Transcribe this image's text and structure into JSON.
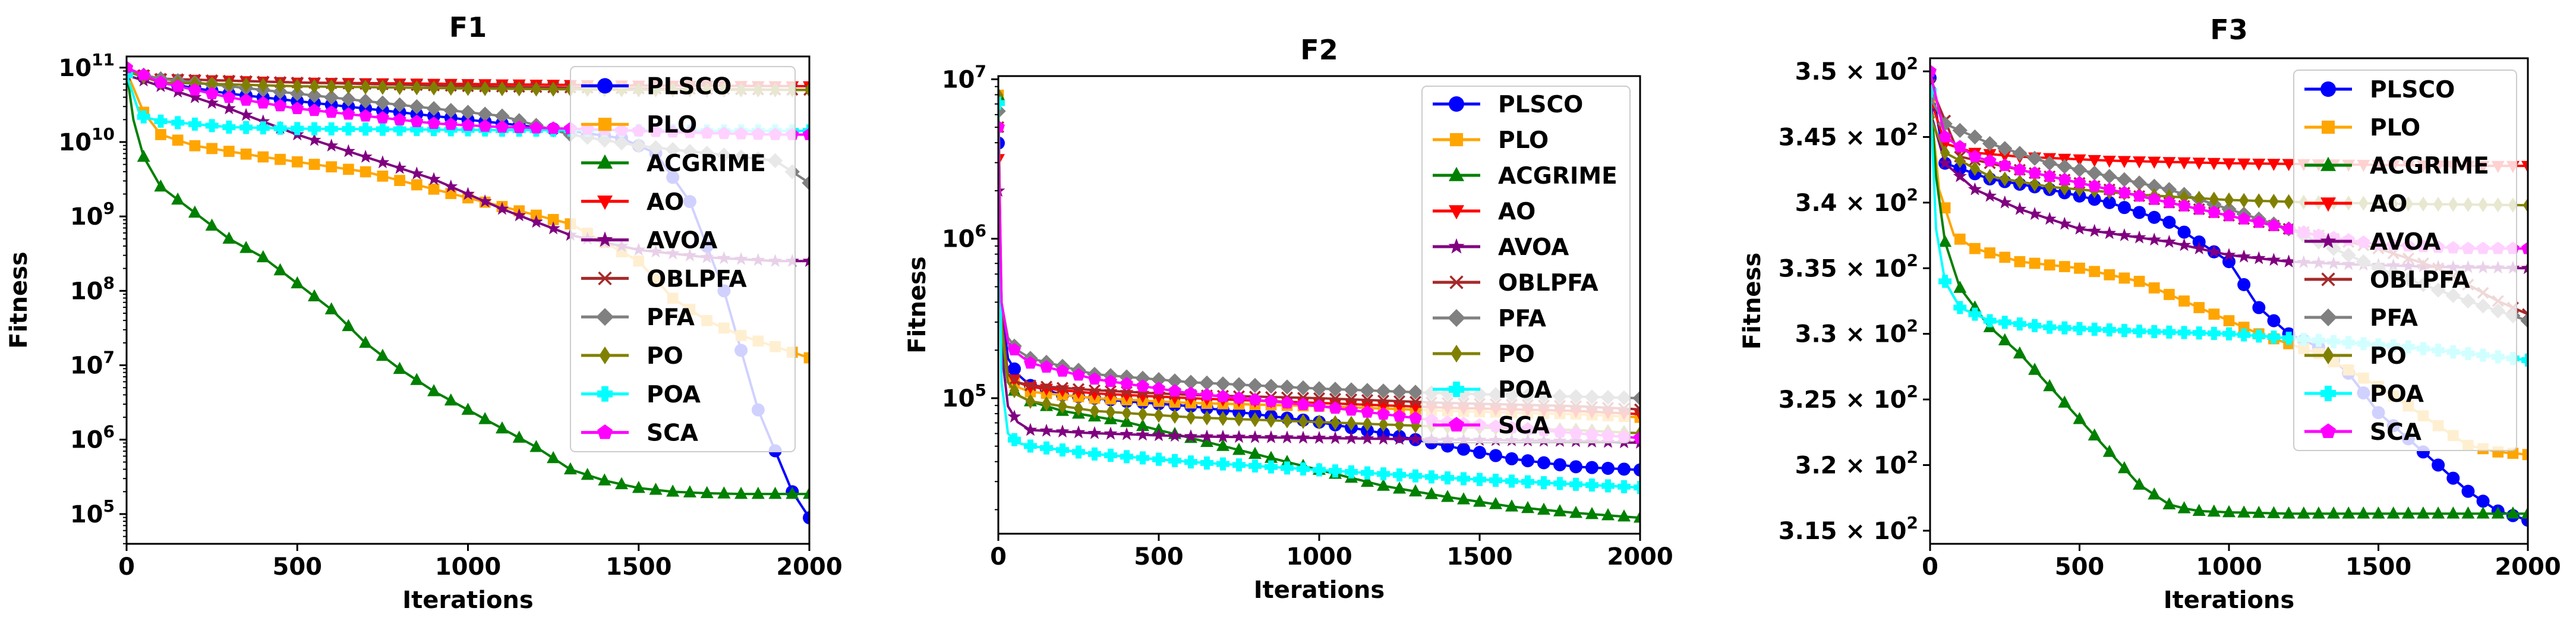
{
  "colors": {
    "PLSCO": "#0000ff",
    "PLO": "#ffa500",
    "ACGRIME": "#008000",
    "AO": "#ff0000",
    "AVOA": "#800080",
    "OBLPFA": "#a52a2a",
    "PFA": "#808080",
    "PO": "#808000",
    "POA": "#00ffff",
    "SCA": "#ff00ff"
  },
  "markers": {
    "PLSCO": "circle",
    "PLO": "square",
    "ACGRIME": "triangle-up",
    "AO": "triangle-down",
    "AVOA": "star",
    "OBLPFA": "x",
    "PFA": "diamond",
    "PO": "diamond-thin",
    "POA": "plus",
    "SCA": "pentagon"
  },
  "chart_data": [
    {
      "type": "line",
      "title": "F1",
      "xlabel": "Iterations",
      "ylabel": "Fitness",
      "yscale": "log",
      "xlim": [
        0,
        2000
      ],
      "ylim_log10": [
        4.6,
        11.15
      ],
      "xticks": [
        0,
        500,
        1000,
        1500,
        2000
      ],
      "xtick_labels": [
        "0",
        "500",
        "1000",
        "1500",
        "2000"
      ],
      "yticks_log10": [
        5,
        6,
        7,
        8,
        9,
        10,
        11
      ],
      "ytick_labels": [
        {
          "base": "10",
          "exp": "5"
        },
        {
          "base": "10",
          "exp": "6"
        },
        {
          "base": "10",
          "exp": "7"
        },
        {
          "base": "10",
          "exp": "8"
        },
        {
          "base": "10",
          "exp": "9"
        },
        {
          "base": "10",
          "exp": "10"
        },
        {
          "base": "10",
          "exp": "11"
        }
      ],
      "legend_location": "upper right",
      "series": [
        {
          "name": "PLSCO",
          "x": [
            0,
            100,
            300,
            500,
            700,
            900,
            1100,
            1300,
            1450,
            1550,
            1650,
            1750,
            1850,
            1950,
            2000
          ],
          "y_log10": [
            10.95,
            10.8,
            10.65,
            10.55,
            10.45,
            10.35,
            10.25,
            10.15,
            10.05,
            9.85,
            9.2,
            8.0,
            6.4,
            5.3,
            4.95
          ]
        },
        {
          "name": "PLO",
          "x": [
            0,
            50,
            100,
            200,
            400,
            700,
            1000,
            1300,
            1500,
            1600,
            1700,
            1800,
            1900,
            2000
          ],
          "y_log10": [
            10.95,
            10.4,
            10.1,
            9.95,
            9.8,
            9.6,
            9.25,
            8.9,
            8.4,
            7.9,
            7.6,
            7.4,
            7.25,
            7.1
          ]
        },
        {
          "name": "ACGRIME",
          "x": [
            0,
            20,
            50,
            100,
            200,
            300,
            400,
            500,
            600,
            700,
            800,
            900,
            1000,
            1100,
            1200,
            1300,
            1400,
            1500,
            1600,
            1700,
            1800,
            1900,
            2000
          ],
          "y_log10": [
            10.95,
            10.3,
            9.8,
            9.4,
            9.05,
            8.7,
            8.45,
            8.1,
            7.75,
            7.3,
            6.95,
            6.65,
            6.4,
            6.15,
            5.9,
            5.6,
            5.45,
            5.35,
            5.3,
            5.28,
            5.27,
            5.27,
            5.27
          ]
        },
        {
          "name": "AO",
          "x": [
            0,
            100,
            500,
            1000,
            1500,
            2000
          ],
          "y_log10": [
            10.95,
            10.85,
            10.8,
            10.78,
            10.76,
            10.75
          ]
        },
        {
          "name": "AVOA",
          "x": [
            0,
            100,
            300,
            500,
            700,
            900,
            1100,
            1300,
            1500,
            1700,
            1900,
            2000
          ],
          "y_log10": [
            10.9,
            10.75,
            10.45,
            10.1,
            9.8,
            9.5,
            9.1,
            8.75,
            8.55,
            8.45,
            8.4,
            8.4
          ]
        },
        {
          "name": "OBLPFA",
          "x": [
            0,
            100,
            500,
            1000,
            1500,
            2000
          ],
          "y_log10": [
            10.95,
            10.85,
            10.8,
            10.75,
            10.72,
            10.7
          ]
        },
        {
          "name": "PFA",
          "x": [
            0,
            100,
            300,
            500,
            700,
            900,
            1100,
            1300,
            1500,
            1700,
            1900,
            2000
          ],
          "y_log10": [
            10.95,
            10.85,
            10.75,
            10.65,
            10.55,
            10.45,
            10.35,
            10.1,
            9.95,
            9.85,
            9.75,
            9.45
          ]
        },
        {
          "name": "PO",
          "x": [
            0,
            100,
            500,
            1000,
            1500,
            2000
          ],
          "y_log10": [
            10.95,
            10.8,
            10.75,
            10.72,
            10.7,
            10.7
          ]
        },
        {
          "name": "POA",
          "x": [
            0,
            40,
            100,
            300,
            500,
            800,
            1100,
            1400,
            1700,
            2000
          ],
          "y_log10": [
            10.9,
            10.35,
            10.28,
            10.2,
            10.18,
            10.17,
            10.16,
            10.16,
            10.15,
            10.15
          ]
        },
        {
          "name": "SCA",
          "x": [
            0,
            100,
            300,
            500,
            700,
            900,
            1100,
            1300,
            1500,
            1700,
            1900,
            2000
          ],
          "y_log10": [
            11.0,
            10.8,
            10.6,
            10.45,
            10.35,
            10.25,
            10.2,
            10.18,
            10.15,
            10.12,
            10.1,
            10.1
          ]
        }
      ]
    },
    {
      "type": "line",
      "title": "F2",
      "xlabel": "Iterations",
      "ylabel": "Fitness",
      "yscale": "log",
      "xlim": [
        0,
        2000
      ],
      "ylim_log10": [
        4.15,
        7.02
      ],
      "xticks": [
        0,
        500,
        1000,
        1500,
        2000
      ],
      "xtick_labels": [
        "0",
        "500",
        "1000",
        "1500",
        "2000"
      ],
      "yticks_log10": [
        5,
        6,
        7
      ],
      "ytick_labels": [
        {
          "base": "10",
          "exp": "5"
        },
        {
          "base": "10",
          "exp": "6"
        },
        {
          "base": "10",
          "exp": "7"
        }
      ],
      "legend_location": "upper right",
      "series": [
        {
          "name": "PLSCO",
          "x": [
            0,
            10,
            30,
            60,
            100,
            200,
            400,
            600,
            800,
            1000,
            1200,
            1400,
            1600,
            1800,
            2000
          ],
          "y_log10": [
            6.6,
            5.6,
            5.25,
            5.15,
            5.08,
            5.02,
            4.98,
            4.95,
            4.9,
            4.85,
            4.78,
            4.7,
            4.62,
            4.57,
            4.55
          ]
        },
        {
          "name": "PLO",
          "x": [
            0,
            10,
            30,
            60,
            100,
            300,
            600,
            1000,
            1400,
            1800,
            2000
          ],
          "y_log10": [
            6.9,
            5.5,
            5.15,
            5.07,
            5.04,
            5.0,
            4.97,
            4.95,
            4.92,
            4.9,
            4.88
          ]
        },
        {
          "name": "ACGRIME",
          "x": [
            0,
            10,
            30,
            60,
            100,
            200,
            400,
            600,
            800,
            1000,
            1200,
            1400,
            1600,
            1800,
            2000
          ],
          "y_log10": [
            6.9,
            5.4,
            5.1,
            5.02,
            4.98,
            4.92,
            4.85,
            4.75,
            4.65,
            4.55,
            4.45,
            4.38,
            4.32,
            4.28,
            4.25
          ]
        },
        {
          "name": "AO",
          "x": [
            0,
            10,
            30,
            60,
            100,
            300,
            600,
            1000,
            1400,
            1800,
            2000
          ],
          "y_log10": [
            6.5,
            5.5,
            5.15,
            5.1,
            5.07,
            5.03,
            5.0,
            4.97,
            4.94,
            4.92,
            4.9
          ]
        },
        {
          "name": "AVOA",
          "x": [
            0,
            10,
            30,
            60,
            100,
            300,
            600,
            1000,
            1400,
            1800,
            2000
          ],
          "y_log10": [
            6.3,
            5.3,
            4.95,
            4.85,
            4.8,
            4.78,
            4.76,
            4.75,
            4.74,
            4.73,
            4.72
          ]
        },
        {
          "name": "OBLPFA",
          "x": [
            0,
            10,
            30,
            60,
            100,
            300,
            600,
            1000,
            1400,
            1800,
            2000
          ],
          "y_log10": [
            6.7,
            5.5,
            5.15,
            5.1,
            5.08,
            5.05,
            5.02,
            5.0,
            4.97,
            4.95,
            4.93
          ]
        },
        {
          "name": "PFA",
          "x": [
            0,
            10,
            30,
            60,
            100,
            300,
            600,
            1000,
            1400,
            1800,
            2000
          ],
          "y_log10": [
            6.8,
            5.6,
            5.38,
            5.3,
            5.25,
            5.15,
            5.1,
            5.06,
            5.03,
            5.01,
            5.0
          ]
        },
        {
          "name": "PO",
          "x": [
            0,
            10,
            30,
            60,
            100,
            300,
            600,
            1000,
            1400,
            1800,
            2000
          ],
          "y_log10": [
            6.9,
            5.45,
            5.1,
            5.02,
            4.98,
            4.92,
            4.88,
            4.85,
            4.82,
            4.8,
            4.78
          ]
        },
        {
          "name": "POA",
          "x": [
            0,
            10,
            30,
            60,
            100,
            300,
            600,
            1000,
            1400,
            1800,
            2000
          ],
          "y_log10": [
            6.85,
            5.1,
            4.78,
            4.72,
            4.7,
            4.65,
            4.6,
            4.55,
            4.5,
            4.46,
            4.44
          ]
        },
        {
          "name": "SCA",
          "x": [
            0,
            10,
            30,
            60,
            100,
            300,
            600,
            1000,
            1400,
            1800,
            2000
          ],
          "y_log10": [
            6.7,
            5.6,
            5.35,
            5.28,
            5.22,
            5.12,
            5.03,
            4.95,
            4.85,
            4.78,
            4.75
          ]
        }
      ]
    },
    {
      "type": "line",
      "title": "F3",
      "xlabel": "Iterations",
      "ylabel": "Fitness",
      "yscale": "linear",
      "xlim": [
        0,
        2000
      ],
      "ylim": [
        314,
        351
      ],
      "xticks": [
        0,
        500,
        1000,
        1500,
        2000
      ],
      "xtick_labels": [
        "0",
        "500",
        "1000",
        "1500",
        "2000"
      ],
      "yticks": [
        315,
        320,
        325,
        330,
        335,
        340,
        345,
        350
      ],
      "ytick_labels": [
        {
          "mantissa": "3.15",
          "base": "10",
          "exp": "2"
        },
        {
          "mantissa": "3.2",
          "base": "10",
          "exp": "2"
        },
        {
          "mantissa": "3.25",
          "base": "10",
          "exp": "2"
        },
        {
          "mantissa": "3.3",
          "base": "10",
          "exp": "2"
        },
        {
          "mantissa": "3.35",
          "base": "10",
          "exp": "2"
        },
        {
          "mantissa": "3.4",
          "base": "10",
          "exp": "2"
        },
        {
          "mantissa": "3.45",
          "base": "10",
          "exp": "2"
        },
        {
          "mantissa": "3.5",
          "base": "10",
          "exp": "2"
        }
      ],
      "legend_location": "upper right",
      "series": [
        {
          "name": "PLSCO",
          "x": [
            0,
            50,
            200,
            400,
            600,
            800,
            1000,
            1100,
            1200,
            1300,
            1400,
            1500,
            1600,
            1700,
            1800,
            1900,
            2000
          ],
          "y": [
            349.5,
            343,
            341.8,
            341,
            340,
            338.5,
            335.5,
            332,
            330,
            329,
            327,
            324,
            322,
            320,
            318,
            316.5,
            315.8
          ]
        },
        {
          "name": "PLO",
          "x": [
            0,
            30,
            80,
            150,
            300,
            500,
            700,
            900,
            1100,
            1300,
            1500,
            1700,
            1800,
            1900,
            2000
          ],
          "y": [
            348,
            341,
            337.5,
            336.5,
            335.5,
            335,
            334,
            332,
            330,
            328.5,
            326,
            323,
            321.5,
            321,
            320.8
          ]
        },
        {
          "name": "ACGRIME",
          "x": [
            0,
            20,
            50,
            100,
            200,
            300,
            400,
            500,
            600,
            700,
            800,
            850,
            900,
            1000,
            1200,
            1500,
            2000
          ],
          "y": [
            349,
            342,
            337,
            333.5,
            330.5,
            328.5,
            326,
            323.5,
            321,
            318.5,
            317,
            316.7,
            316.5,
            316.4,
            316.3,
            316.3,
            316.3
          ]
        },
        {
          "name": "AO",
          "x": [
            0,
            50,
            150,
            300,
            600,
            1000,
            1400,
            1800,
            2000
          ],
          "y": [
            348,
            344.5,
            343.8,
            343.5,
            343.2,
            343,
            342.9,
            342.8,
            342.8
          ]
        },
        {
          "name": "AVOA",
          "x": [
            0,
            50,
            150,
            300,
            500,
            800,
            1000,
            1200,
            1400,
            1700,
            2000
          ],
          "y": [
            347,
            343,
            341,
            339.5,
            338,
            337,
            336,
            335.5,
            335.3,
            335.1,
            335
          ]
        },
        {
          "name": "OBLPFA",
          "x": [
            0,
            100,
            300,
            600,
            900,
            1200,
            1500,
            1700,
            1900,
            2000
          ],
          "y": [
            349,
            343.5,
            342.5,
            341,
            339.5,
            338,
            336.5,
            335,
            332.5,
            331.5
          ]
        },
        {
          "name": "PFA",
          "x": [
            0,
            50,
            200,
            400,
            600,
            800,
            1000,
            1200,
            1500,
            1800,
            2000
          ],
          "y": [
            348,
            346,
            344.5,
            343,
            342,
            341,
            339.5,
            338,
            335,
            332.5,
            331
          ]
        },
        {
          "name": "PO",
          "x": [
            0,
            50,
            200,
            400,
            700,
            1000,
            1300,
            1600,
            2000
          ],
          "y": [
            346.5,
            343.8,
            342,
            341.2,
            340.6,
            340.2,
            340,
            339.9,
            339.8
          ]
        },
        {
          "name": "POA",
          "x": [
            0,
            20,
            50,
            100,
            200,
            400,
            700,
            1000,
            1300,
            1600,
            2000
          ],
          "y": [
            348.5,
            338,
            334,
            332,
            331,
            330.5,
            330.2,
            330,
            329.5,
            329,
            328
          ]
        },
        {
          "name": "SCA",
          "x": [
            0,
            50,
            150,
            300,
            500,
            700,
            900,
            1100,
            1300,
            1500,
            1800,
            2000
          ],
          "y": [
            350,
            345,
            343.5,
            342.5,
            341.5,
            340.5,
            339.5,
            338.5,
            337.5,
            336.8,
            336.5,
            336.5
          ]
        }
      ]
    }
  ]
}
